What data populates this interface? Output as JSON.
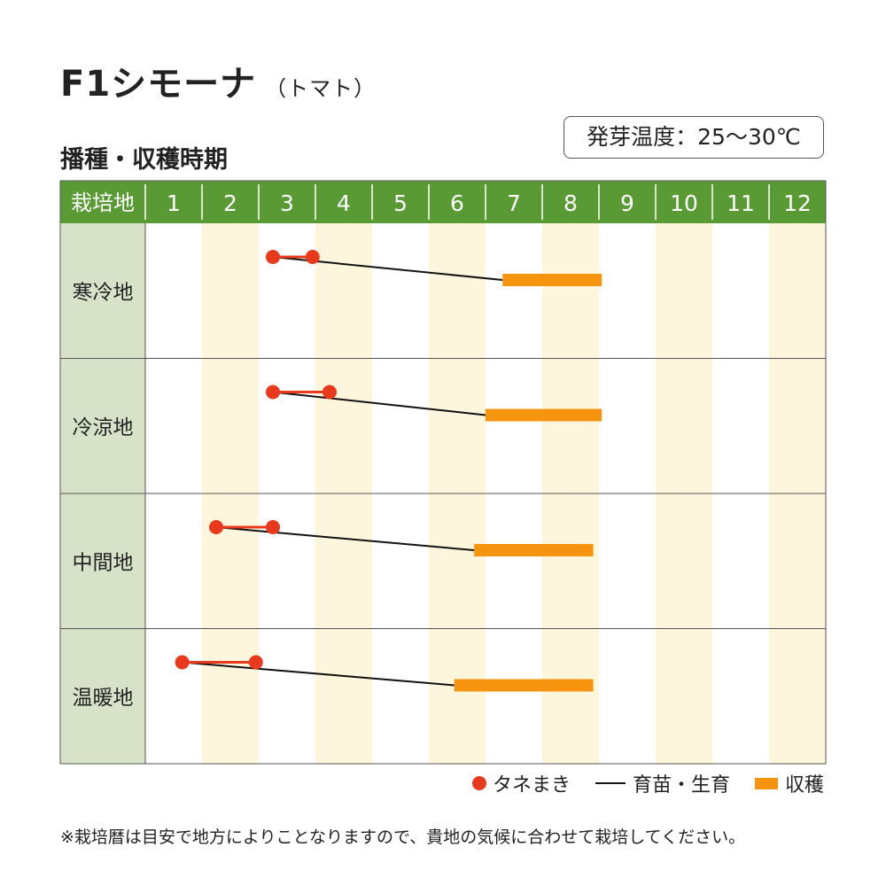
{
  "title": "F1シモーナ",
  "subtitle": "（トマト）",
  "section_title": "播種・収穫時期",
  "temperature": "発芽温度：25〜30℃",
  "colors": {
    "header_green": "#5a9a35",
    "row_label_bg": "#d8e2c8",
    "month_stripe": "#fdf6dc",
    "sowing": "#e8391d",
    "growing": "#111111",
    "harvest": "#f7940f"
  },
  "chart_data": {
    "type": "gantt",
    "header_label": "栽培地",
    "months": [
      "1",
      "2",
      "3",
      "4",
      "5",
      "6",
      "7",
      "8",
      "9",
      "10",
      "11",
      "12"
    ],
    "x_unit": "month",
    "rows": [
      {
        "label": "寒冷地",
        "sowing": [
          3.25,
          3.95
        ],
        "growing": [
          3.25,
          7.3
        ],
        "harvest": [
          7.3,
          9.05
        ]
      },
      {
        "label": "冷涼地",
        "sowing": [
          3.25,
          4.25
        ],
        "growing": [
          3.25,
          7.0
        ],
        "harvest": [
          7.0,
          9.05
        ]
      },
      {
        "label": "中間地",
        "sowing": [
          2.25,
          3.25
        ],
        "growing": [
          2.25,
          6.8
        ],
        "harvest": [
          6.8,
          8.9
        ]
      },
      {
        "label": "温暖地",
        "sowing": [
          1.65,
          2.95
        ],
        "growing": [
          1.65,
          6.45
        ],
        "harvest": [
          6.45,
          8.9
        ]
      }
    ],
    "legend": [
      {
        "key": "sowing",
        "label": "タネまき"
      },
      {
        "key": "growing",
        "label": "育苗・生育"
      },
      {
        "key": "harvest",
        "label": "収穫"
      }
    ]
  },
  "footnote": "※栽培暦は目安で地方によりことなりますので、貴地の気候に合わせて栽培してください。"
}
